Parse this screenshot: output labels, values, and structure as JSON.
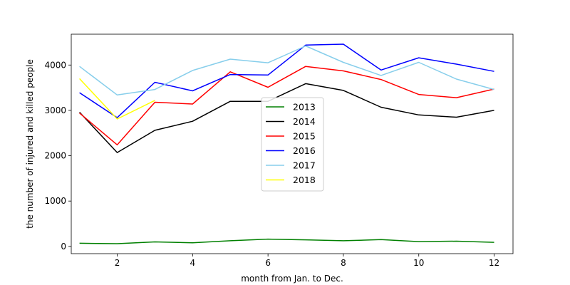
{
  "chart_data": {
    "type": "line",
    "title": "",
    "xlabel": "month from Jan. to Dec.",
    "ylabel": "the number of injured and killed people",
    "xlim": [
      0.78,
      12.5
    ],
    "ylim": [
      -160,
      4680
    ],
    "xticks": [
      2,
      4,
      6,
      8,
      10,
      12
    ],
    "yticks": [
      0,
      1000,
      2000,
      3000,
      4000
    ],
    "grid": false,
    "legend_position": "center",
    "series": [
      {
        "name": "2013",
        "color": "#008000",
        "x": [
          1,
          2,
          3,
          4,
          5,
          6,
          7,
          8,
          9,
          10,
          11,
          12
        ],
        "values": [
          70,
          60,
          100,
          80,
          125,
          160,
          145,
          125,
          150,
          105,
          115,
          90
        ]
      },
      {
        "name": "2014",
        "color": "#000000",
        "x": [
          1,
          2,
          3,
          4,
          5,
          6,
          7,
          8,
          9,
          10,
          11,
          12
        ],
        "values": [
          2960,
          2070,
          2560,
          2760,
          3200,
          3200,
          3590,
          3440,
          3070,
          2900,
          2850,
          3000
        ]
      },
      {
        "name": "2015",
        "color": "#ff0000",
        "x": [
          1,
          2,
          3,
          4,
          5,
          6,
          7,
          8,
          9,
          10,
          11,
          12
        ],
        "values": [
          2940,
          2240,
          3180,
          3140,
          3850,
          3510,
          3970,
          3870,
          3680,
          3350,
          3280,
          3470
        ]
      },
      {
        "name": "2016",
        "color": "#0000ff",
        "x": [
          1,
          2,
          3,
          4,
          5,
          6,
          7,
          8,
          9,
          10,
          11,
          12
        ],
        "values": [
          3390,
          2840,
          3620,
          3430,
          3790,
          3780,
          4440,
          4460,
          3890,
          4160,
          4020,
          3860
        ]
      },
      {
        "name": "2017",
        "color": "#87ceeb",
        "x": [
          1,
          2,
          3,
          4,
          5,
          6,
          7,
          8,
          9,
          10,
          11,
          12
        ],
        "values": [
          3970,
          3340,
          3460,
          3880,
          4130,
          4050,
          4420,
          4060,
          3770,
          4060,
          3690,
          3460
        ]
      },
      {
        "name": "2018",
        "color": "#ffff00",
        "x": [
          1,
          2,
          3
        ],
        "values": [
          3700,
          2810,
          3220
        ]
      }
    ]
  }
}
